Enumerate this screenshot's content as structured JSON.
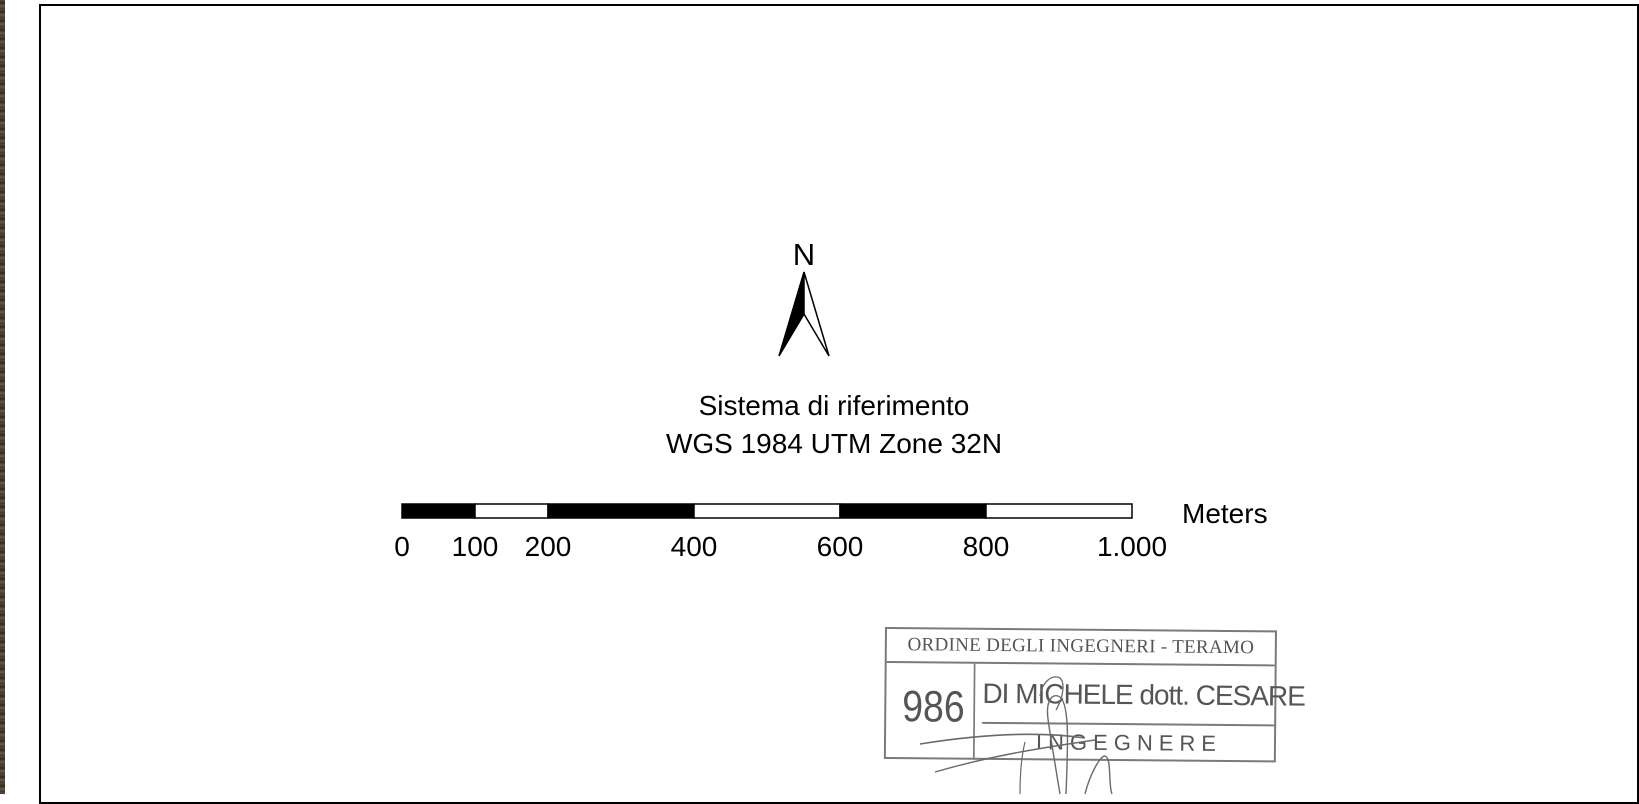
{
  "north_arrow": {
    "letter": "N",
    "icon": "north-arrow-icon"
  },
  "reference_system": {
    "line1": "Sistema di riferimento",
    "line2": "WGS 1984 UTM Zone 32N"
  },
  "scale_bar": {
    "unit": "Meters",
    "ticks": [
      {
        "value": 0,
        "label": "0"
      },
      {
        "value": 100,
        "label": "100"
      },
      {
        "value": 200,
        "label": "200"
      },
      {
        "value": 400,
        "label": "400"
      },
      {
        "value": 600,
        "label": "600"
      },
      {
        "value": 800,
        "label": "800"
      },
      {
        "value": 1000,
        "label": "1.000"
      }
    ],
    "segments": [
      {
        "from": 0,
        "to": 100,
        "fill": "#000000"
      },
      {
        "from": 100,
        "to": 200,
        "fill": "#ffffff"
      },
      {
        "from": 200,
        "to": 400,
        "fill": "#000000"
      },
      {
        "from": 400,
        "to": 600,
        "fill": "#ffffff"
      },
      {
        "from": 600,
        "to": 800,
        "fill": "#000000"
      },
      {
        "from": 800,
        "to": 1000,
        "fill": "#ffffff"
      }
    ]
  },
  "stamp": {
    "header": "ORDINE DEGLI INGEGNERI - TERAMO",
    "number": "986",
    "name": "DI MICHELE dott. CESARE",
    "role": "INGEGNERE",
    "ink_color": "#555555"
  }
}
